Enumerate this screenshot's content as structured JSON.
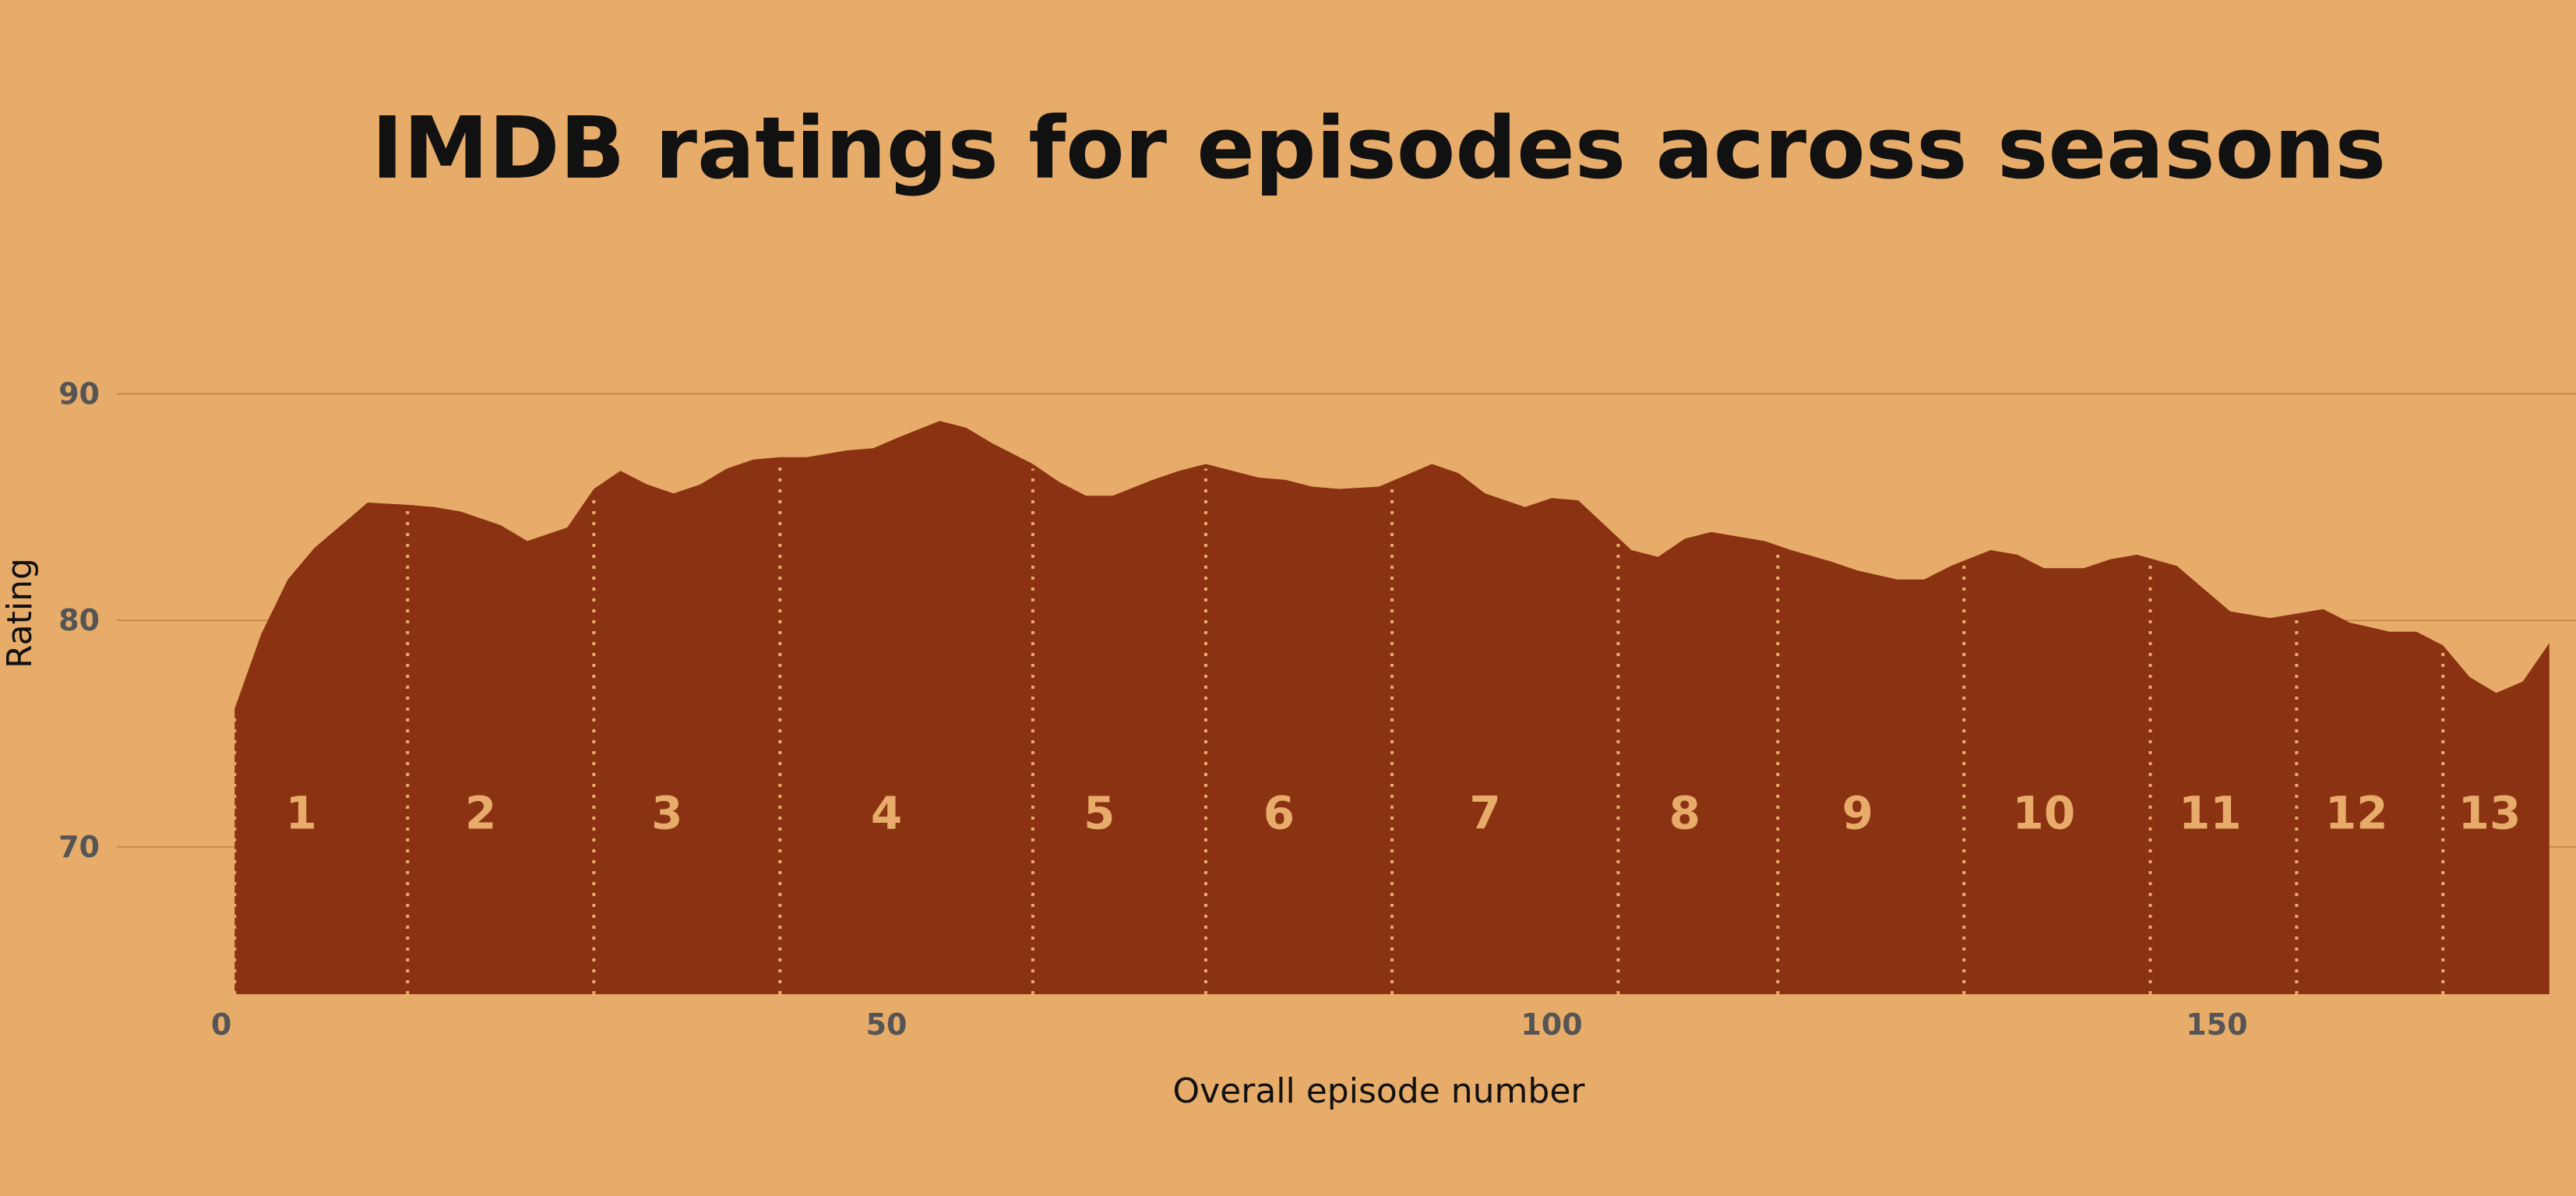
{
  "chart_data": {
    "type": "area",
    "title": "IMDB ratings for episodes across seasons",
    "xlabel": "Overall episode number",
    "ylabel": "Rating",
    "xlim": [
      -2,
      177
    ],
    "ylim": [
      63.5,
      95
    ],
    "x_ticks": [
      "0",
      "50",
      "100",
      "150"
    ],
    "x_tick_values": [
      0,
      50,
      100,
      150
    ],
    "y_ticks": [
      "70",
      "80",
      "90"
    ],
    "y_tick_values": [
      70,
      80,
      90
    ],
    "grid": "horizontal",
    "colors": {
      "background": "#E8AC6A",
      "area": "#8B3212",
      "gridline": "#C9894A",
      "season_label": "#E8AC6A",
      "divider": "#E8AC6A"
    },
    "season_labels": [
      "1",
      "2",
      "3",
      "4",
      "5",
      "6",
      "7",
      "8",
      "9",
      "10",
      "11",
      "12",
      "13"
    ],
    "season_label_x": [
      6,
      19.5,
      33.5,
      50,
      66,
      79.5,
      95,
      110,
      123,
      137,
      149.5,
      160.5,
      170.5
    ],
    "season_label_y": 71.5,
    "season_boundaries": [
      1,
      14,
      28,
      42,
      61,
      74,
      88,
      105,
      117,
      131,
      145,
      156,
      167
    ],
    "series": [
      {
        "x": [
          1,
          3,
          5,
          7,
          9,
          11,
          14,
          16,
          18,
          21,
          23,
          26,
          28,
          30,
          32,
          34,
          36,
          38,
          40,
          42,
          44,
          47,
          49,
          51,
          54,
          56,
          58,
          61,
          63,
          65,
          67,
          70,
          72,
          74,
          76,
          78,
          80,
          82,
          84,
          87,
          89,
          91,
          93,
          95,
          98,
          100,
          102,
          104,
          106,
          108,
          110,
          112,
          114,
          116,
          118,
          121,
          123,
          126,
          128,
          130,
          133,
          135,
          137,
          140,
          142,
          144,
          147,
          149,
          151,
          154,
          156,
          158,
          160,
          163,
          165,
          167,
          169,
          171,
          173,
          175
        ],
        "y": [
          76.1,
          79.4,
          81.8,
          83.2,
          84.2,
          85.2,
          85.1,
          85.0,
          84.8,
          84.2,
          83.5,
          84.1,
          85.8,
          86.6,
          86.0,
          85.6,
          86.0,
          86.7,
          87.1,
          87.2,
          87.2,
          87.5,
          87.6,
          88.1,
          88.8,
          88.5,
          87.8,
          86.9,
          86.1,
          85.5,
          85.5,
          86.2,
          86.6,
          86.9,
          86.6,
          86.3,
          86.2,
          85.9,
          85.8,
          85.9,
          86.4,
          86.9,
          86.5,
          85.6,
          85.0,
          85.4,
          85.3,
          84.2,
          83.1,
          82.8,
          83.6,
          83.9,
          83.7,
          83.5,
          83.1,
          82.6,
          82.2,
          81.8,
          81.8,
          82.4,
          83.1,
          82.9,
          82.3,
          82.3,
          82.7,
          82.9,
          82.4,
          81.4,
          80.4,
          80.1,
          80.3,
          80.5,
          79.9,
          79.5,
          79.5,
          78.9,
          77.5,
          76.8,
          77.3,
          79.0
        ]
      }
    ]
  }
}
